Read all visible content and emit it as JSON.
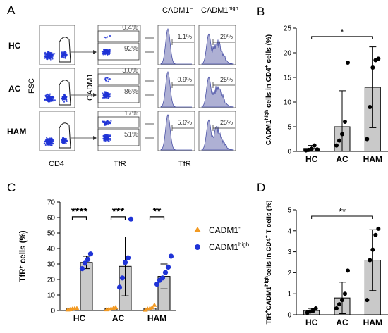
{
  "panel_letters": [
    "A",
    "B",
    "C",
    "D"
  ],
  "colors": {
    "blue": "#1f33d6",
    "orange": "#f39a22",
    "bar_fill": "#c9c9c9",
    "hist_fill": "#aeb0d4",
    "hist_line": "#4a51a6"
  },
  "flow": {
    "row_labels": [
      "HC",
      "AC",
      "HAM"
    ],
    "fsc_label": "FSC",
    "cd4_label": "CD4",
    "cadm1_label": "CADM1",
    "tfr_label": "TfR",
    "tfr_label_hist": "TfR",
    "hist_header_neg": "CADM1⁻",
    "hist_header_high_main": "CADM1",
    "hist_header_high_sup": "high",
    "gate_high": [
      "0.4%",
      "3.0%",
      "17%"
    ],
    "gate_mid": [
      "92%",
      "86%",
      "51%"
    ],
    "hist_neg_pct": [
      "1.1%",
      "0.9%",
      "5.6%"
    ],
    "hist_high_pct": [
      "29%",
      "25%",
      "25%"
    ]
  },
  "significance": {
    "B": "*",
    "C": [
      "****",
      "***",
      "**"
    ],
    "D": "**"
  },
  "chart_data": [
    {
      "panel": "B",
      "type": "bar",
      "categories": [
        "HC",
        "AC",
        "HAM"
      ],
      "values": [
        0.6,
        5.0,
        13.0
      ],
      "error_sd": [
        0.6,
        7.3,
        8.2
      ],
      "points": [
        [
          0.2,
          0.3,
          0.5,
          1.2,
          0.4
        ],
        [
          1.2,
          2.2,
          3.5,
          6.0,
          18.0
        ],
        [
          2.5,
          9.0,
          17.0,
          18.5,
          18.8
        ]
      ],
      "ylabel_parts": [
        "CADM1",
        "high",
        " cells in CD4",
        "+",
        " cells (%)"
      ],
      "ylim": [
        0,
        25
      ],
      "yticks": [
        0,
        5,
        10,
        15,
        20,
        25
      ],
      "significance": "*"
    },
    {
      "panel": "C",
      "type": "bar",
      "categories": [
        "HC",
        "AC",
        "HAM"
      ],
      "series": [
        {
          "name": "CADM1⁻",
          "values": [
            1.0,
            1.2,
            1.5
          ],
          "points": [
            [
              0.5,
              0.7,
              1.0,
              1.2,
              1.4
            ],
            [
              0.6,
              0.9,
              1.2,
              1.5,
              2.0
            ],
            [
              0.4,
              1.0,
              1.5,
              2.0,
              3.5
            ]
          ]
        },
        {
          "name": "CADM1high",
          "values": [
            31.0,
            28.5,
            22.0
          ],
          "error_sd": [
            4.0,
            19.0,
            8.0
          ],
          "points": [
            [
              27.0,
              30.5,
              33.0,
              36.5
            ],
            [
              15.0,
              21.0,
              31.0,
              34.0,
              59.0
            ],
            [
              17.0,
              19.5,
              21.0,
              24.5,
              28.0,
              35.0
            ]
          ]
        }
      ],
      "legend_labels": [
        {
          "main": "CADM1",
          "sup": "-"
        },
        {
          "main": "CADM1",
          "sup": "high"
        }
      ],
      "ylabel_parts": [
        "TfR",
        "+",
        " cells (%)"
      ],
      "ylim": [
        0,
        70
      ],
      "yticks": [
        0,
        10,
        20,
        30,
        40,
        50,
        60,
        70
      ],
      "significance": [
        "****",
        "***",
        "**"
      ]
    },
    {
      "panel": "D",
      "type": "bar",
      "categories": [
        "HC",
        "AC",
        "HAM"
      ],
      "values": [
        0.2,
        0.8,
        2.6
      ],
      "error_sd": [
        0.1,
        0.75,
        1.45
      ],
      "points": [
        [
          0.1,
          0.15,
          0.2,
          0.3
        ],
        [
          0.3,
          0.5,
          0.7,
          1.0,
          2.1
        ],
        [
          0.7,
          2.6,
          3.1,
          3.8,
          4.1
        ]
      ],
      "ylabel_parts": [
        "TfR",
        "+",
        "CADM1",
        "high",
        "cells in CD4",
        "+",
        " T cells (%)"
      ],
      "ylim": [
        0,
        5
      ],
      "yticks": [
        0,
        1,
        2,
        3,
        4,
        5
      ],
      "significance": "**"
    }
  ]
}
